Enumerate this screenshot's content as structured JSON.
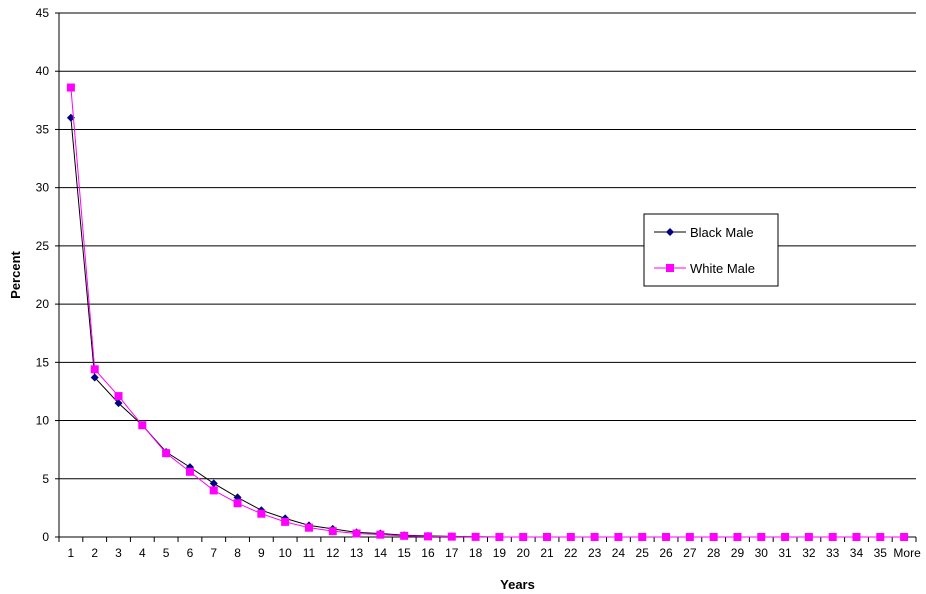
{
  "chart_data": {
    "type": "line",
    "xlabel": "Years",
    "ylabel": "Percent",
    "ylim": [
      0,
      45
    ],
    "yticks": [
      "0",
      "5",
      "10",
      "15",
      "20",
      "25",
      "30",
      "35",
      "40",
      "45"
    ],
    "grid": true,
    "legend_position": "right",
    "categories": [
      "1",
      "2",
      "3",
      "4",
      "5",
      "6",
      "7",
      "8",
      "9",
      "10",
      "11",
      "12",
      "13",
      "14",
      "15",
      "16",
      "17",
      "18",
      "19",
      "20",
      "21",
      "22",
      "23",
      "24",
      "25",
      "26",
      "27",
      "28",
      "29",
      "30",
      "31",
      "32",
      "33",
      "34",
      "35",
      "More"
    ],
    "series": [
      {
        "name": "Black Male",
        "color": "#000080",
        "line_color": "#000000",
        "marker": "diamond",
        "values": [
          36.0,
          13.7,
          11.5,
          9.6,
          7.3,
          6.0,
          4.6,
          3.4,
          2.3,
          1.6,
          1.0,
          0.7,
          0.4,
          0.3,
          0.15,
          0.1,
          0.05,
          0.02,
          0,
          0,
          0,
          0,
          0,
          0,
          0,
          0,
          0,
          0,
          0,
          0,
          0,
          0,
          0,
          0,
          0,
          0
        ]
      },
      {
        "name": "White Male",
        "color": "#FF00FF",
        "line_color": "#FF00FF",
        "marker": "square",
        "values": [
          38.6,
          14.4,
          12.1,
          9.6,
          7.2,
          5.6,
          4.0,
          2.9,
          2.0,
          1.3,
          0.8,
          0.5,
          0.3,
          0.2,
          0.1,
          0.05,
          0.03,
          0.01,
          0,
          0,
          0,
          0,
          0,
          0,
          0,
          0,
          0,
          0,
          0,
          0,
          0,
          0,
          0,
          0,
          0,
          0
        ]
      }
    ]
  }
}
